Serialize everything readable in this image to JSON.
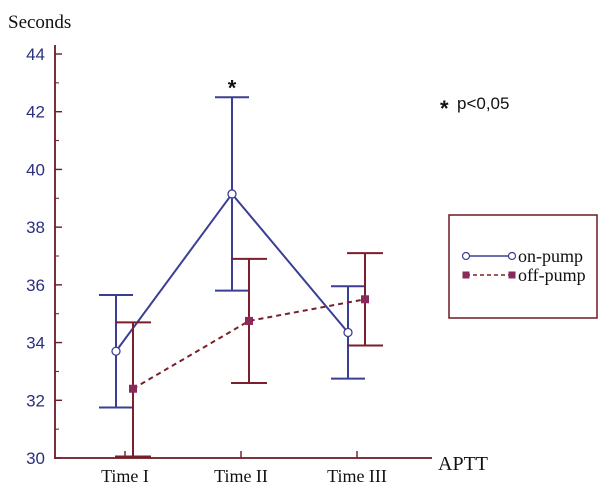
{
  "chart_data": {
    "type": "line",
    "ylabel": "Seconds",
    "xlabel": "APTT",
    "categories": [
      "Time I",
      "Time II",
      "Time III"
    ],
    "ylim": [
      30,
      44
    ],
    "yticks": [
      "30",
      "32",
      "34",
      "36",
      "38",
      "40",
      "42",
      "44"
    ],
    "annotation": "p<0,05",
    "annotation_marker": "*",
    "significance_marker": "*",
    "significance_category": "Time II",
    "legend_position": "right",
    "series": [
      {
        "name": "on-pump",
        "values": [
          33.7,
          39.15,
          34.35
        ],
        "err_low": [
          31.75,
          35.8,
          32.75
        ],
        "err_high": [
          35.65,
          42.5,
          35.95
        ],
        "color": "#3b3f94",
        "line_style": "solid",
        "marker": "open-circle"
      },
      {
        "name": "off-pump",
        "values": [
          32.4,
          34.75,
          35.5
        ],
        "err_low": [
          30.05,
          32.6,
          33.9
        ],
        "err_high": [
          34.7,
          36.9,
          37.1
        ],
        "color": "#7a1f2b",
        "line_style": "dashed",
        "marker": "filled-square"
      }
    ]
  }
}
